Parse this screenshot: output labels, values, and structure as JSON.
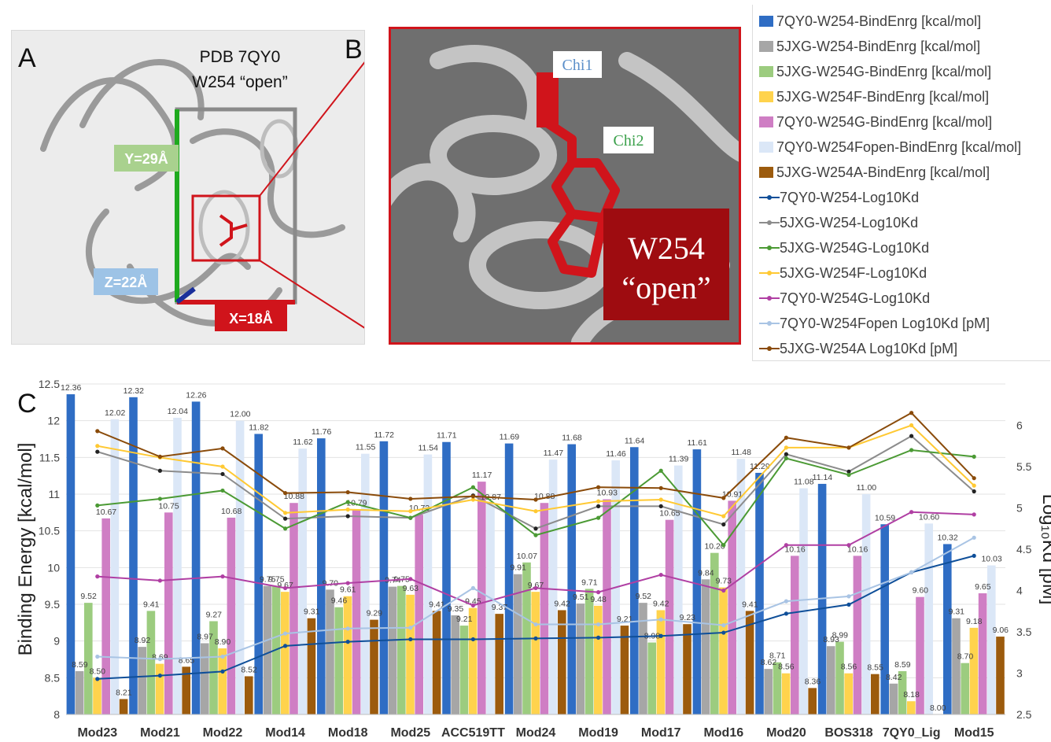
{
  "panels": {
    "a": {
      "label": "A",
      "title_line1": "PDB 7QY0",
      "title_line2": "W254 “open”",
      "dim_y": "Y=29Å",
      "dim_z": "Z=22Å",
      "dim_x": "X=18Å"
    },
    "b": {
      "label": "B",
      "chi1": "Chi1",
      "chi2": "Chi2",
      "residue_line1": "W254",
      "residue_line2": "“open”"
    },
    "c": {
      "label": "C"
    }
  },
  "legend": [
    {
      "name": "7QY0-W254-BindEnrg [kcal/mol]",
      "kind": "bar",
      "color": "#2f6dc4"
    },
    {
      "name": "5JXG-W254-BindEnrg [kcal/mol]",
      "kind": "bar",
      "color": "#a6a6a6"
    },
    {
      "name": "5JXG-W254G-BindEnrg [kcal/mol]",
      "kind": "bar",
      "color": "#9ccc7f"
    },
    {
      "name": "5JXG-W254F-BindEnrg [kcal/mol]",
      "kind": "bar",
      "color": "#ffd34d"
    },
    {
      "name": "7QY0-W254G-BindEnrg [kcal/mol]",
      "kind": "bar",
      "color": "#cf7ec4"
    },
    {
      "name": "7QY0-W254Fopen-BindEnrg [kcal/mol]",
      "kind": "bar",
      "color": "#dbe7f7"
    },
    {
      "name": "5JXG-W254A-BindEnrg [kcal/mol]",
      "kind": "bar",
      "color": "#9c5b0d"
    },
    {
      "name": "7QY0-W254-Log10Kd",
      "kind": "line",
      "color": "#0f4f99"
    },
    {
      "name": "5JXG-W254-Log10Kd",
      "kind": "line",
      "color": "#8c8c8c"
    },
    {
      "name": "5JXG-W254G-Log10Kd",
      "kind": "line",
      "color": "#4b9a34"
    },
    {
      "name": "5JXG-W254F-Log10Kd",
      "kind": "line",
      "color": "#ffc933"
    },
    {
      "name": "7QY0-W254G-Log10Kd",
      "kind": "line",
      "color": "#b03fa3"
    },
    {
      "name": "7QY0-W254Fopen Log10Kd [pM]",
      "kind": "line",
      "color": "#a9c4e4"
    },
    {
      "name": "5JXG-W254A Log10Kd [pM]",
      "kind": "line",
      "color": "#8a4b0a"
    }
  ],
  "chart_data": {
    "type": "bar",
    "ylabel": "Binding Energy [kcal/mol]",
    "y2label": "Log₁₀Kd [pM]",
    "ylim": [
      8,
      12.5
    ],
    "y2lim": [
      2.5,
      6.5
    ],
    "yticks": [
      "8",
      "8.5",
      "9",
      "9.5",
      "10",
      "10.5",
      "11",
      "11.5",
      "12",
      "12.5"
    ],
    "y2ticks": [
      "2.5",
      "3",
      "3.5",
      "4",
      "4.5",
      "5",
      "5.5",
      "6"
    ],
    "categories": [
      "Mod23",
      "Mod21",
      "Mod22",
      "Mod14",
      "Mod18",
      "Mod25",
      "ACC519TT",
      "Mod24",
      "Mod19",
      "Mod17",
      "Mod16",
      "Mod20",
      "BOS318",
      "7QY0_Lig",
      "Mod15"
    ],
    "series": [
      {
        "name": "7QY0-W254-BindEnrg [kcal/mol]",
        "values": [
          12.36,
          12.32,
          12.26,
          11.82,
          11.76,
          11.72,
          11.71,
          11.69,
          11.68,
          11.64,
          11.61,
          11.29,
          11.14,
          10.59,
          10.32
        ]
      },
      {
        "name": "5JXG-W254-BindEnrg [kcal/mol]",
        "values": [
          8.59,
          8.92,
          8.97,
          9.75,
          9.7,
          9.74,
          9.35,
          9.91,
          9.51,
          9.52,
          9.84,
          8.62,
          8.93,
          8.42,
          9.31
        ]
      },
      {
        "name": "5JXG-W254G-BindEnrg [kcal/mol]",
        "values": [
          9.52,
          9.41,
          9.27,
          9.75,
          9.46,
          9.75,
          9.21,
          10.07,
          9.71,
          8.98,
          10.2,
          8.71,
          8.99,
          8.59,
          8.7
        ]
      },
      {
        "name": "5JXG-W254F-BindEnrg [kcal/mol]",
        "values": [
          8.5,
          8.69,
          8.9,
          9.67,
          9.61,
          9.63,
          9.45,
          9.67,
          9.48,
          9.42,
          9.73,
          8.56,
          8.56,
          8.18,
          9.18
        ]
      },
      {
        "name": "7QY0-W254G-BindEnrg [kcal/mol]",
        "values": [
          10.67,
          10.75,
          10.68,
          10.88,
          10.79,
          10.72,
          11.17,
          10.88,
          10.93,
          10.65,
          10.91,
          10.16,
          10.16,
          9.6,
          9.65
        ]
      },
      {
        "name": "7QY0-W254Fopen-BindEnrg [kcal/mol]",
        "values": [
          12.02,
          12.04,
          12.0,
          11.62,
          11.55,
          11.54,
          10.87,
          11.47,
          11.46,
          11.39,
          11.48,
          11.08,
          11.0,
          10.6,
          10.03
        ]
      },
      {
        "name": "5JXG-W254A-BindEnrg [kcal/mol]",
        "values": [
          8.21,
          8.65,
          8.52,
          9.31,
          9.29,
          9.41,
          9.37,
          9.42,
          9.21,
          9.23,
          9.41,
          8.36,
          8.55,
          8.0,
          9.06
        ]
      }
    ],
    "bar_labels": [
      [
        "12.36",
        "12.32",
        "12.26",
        "11.82",
        "11.76",
        "11.72",
        "11.71",
        "11.69",
        "11.68",
        "11.64",
        "11.61",
        "11.29",
        "11.14",
        "10.59",
        "10.32"
      ],
      [
        "8.59",
        "8.92",
        "8.97",
        "9.75",
        "9.70",
        "9.74",
        "9.35",
        "9.91",
        "9.51",
        "9.52",
        "9.84",
        "8.62",
        "8.93",
        "8.42",
        "9.31"
      ],
      [
        "9.52",
        "9.41",
        "9.27",
        "9.75",
        "9.46",
        "9.75",
        "9.21",
        "10.07",
        "9.71",
        "8.98",
        "10.20",
        "8.71",
        "8.99",
        "8.59",
        "8.70"
      ],
      [
        "8.50",
        "8.69",
        "8.90",
        "9.67",
        "9.61",
        "9.63",
        "9.45",
        "9.67",
        "9.48",
        "9.42",
        "9.73",
        "8.56",
        "8.56",
        "8.18",
        "9.18"
      ],
      [
        "10.67",
        "10.75",
        "10.68",
        "10.88",
        "10.79",
        "10.72",
        "11.17",
        "10.88",
        "10.93",
        "10.65",
        "10.91",
        "10.16",
        "10.16",
        "9.60",
        "9.65"
      ],
      [
        "12.02",
        "12.04",
        "12.00",
        "11.62",
        "11.55",
        "11.54",
        "10.87",
        "11.47",
        "11.46",
        "11.39",
        "11.48",
        "11.08",
        "11.00",
        "10.60",
        "10.03"
      ],
      [
        "8.21",
        "8.65",
        "8.52",
        "9.31",
        "9.29",
        "9.41",
        "9.37",
        "9.42",
        "9.21",
        "9.23",
        "9.41",
        "8.36",
        "8.55",
        "8.00",
        "9.06"
      ]
    ],
    "line_series": [
      {
        "name": "7QY0-W254-Log10Kd",
        "values": [
          2.93,
          2.97,
          3.02,
          3.33,
          3.38,
          3.41,
          3.41,
          3.42,
          3.43,
          3.45,
          3.49,
          3.72,
          3.83,
          4.22,
          4.42
        ]
      },
      {
        "name": "5JXG-W254-Log10Kd",
        "values": [
          5.68,
          5.45,
          5.41,
          4.87,
          4.9,
          4.88,
          5.15,
          4.75,
          5.02,
          5.02,
          4.8,
          5.65,
          5.44,
          5.87,
          5.2
        ]
      },
      {
        "name": "5JXG-W254G-Log10Kd",
        "values": [
          5.03,
          5.11,
          5.21,
          4.75,
          5.07,
          4.88,
          5.25,
          4.67,
          4.88,
          5.45,
          4.55,
          5.6,
          5.4,
          5.7,
          5.62
        ]
      },
      {
        "name": "5JXG-W254F-Log10Kd",
        "values": [
          5.75,
          5.61,
          5.5,
          4.94,
          4.98,
          4.96,
          5.1,
          4.96,
          5.08,
          5.1,
          4.9,
          5.73,
          5.73,
          6.0,
          5.27
        ]
      },
      {
        "name": "7QY0-W254G-Log10Kd",
        "values": [
          4.17,
          4.12,
          4.17,
          4.03,
          4.09,
          4.14,
          3.82,
          4.03,
          3.98,
          4.19,
          4.0,
          4.55,
          4.55,
          4.95,
          4.92
        ]
      },
      {
        "name": "7QY0-W254Fopen Log10Kd [pM]",
        "values": [
          3.2,
          3.17,
          3.2,
          3.48,
          3.54,
          3.55,
          4.03,
          3.59,
          3.59,
          3.65,
          3.58,
          3.87,
          3.93,
          4.22,
          4.64
        ]
      },
      {
        "name": "5JXG-W254A Log10Kd [pM]",
        "values": [
          5.93,
          5.62,
          5.72,
          5.18,
          5.19,
          5.11,
          5.14,
          5.1,
          5.25,
          5.24,
          5.12,
          5.85,
          5.73,
          6.15,
          5.36
        ]
      }
    ]
  }
}
